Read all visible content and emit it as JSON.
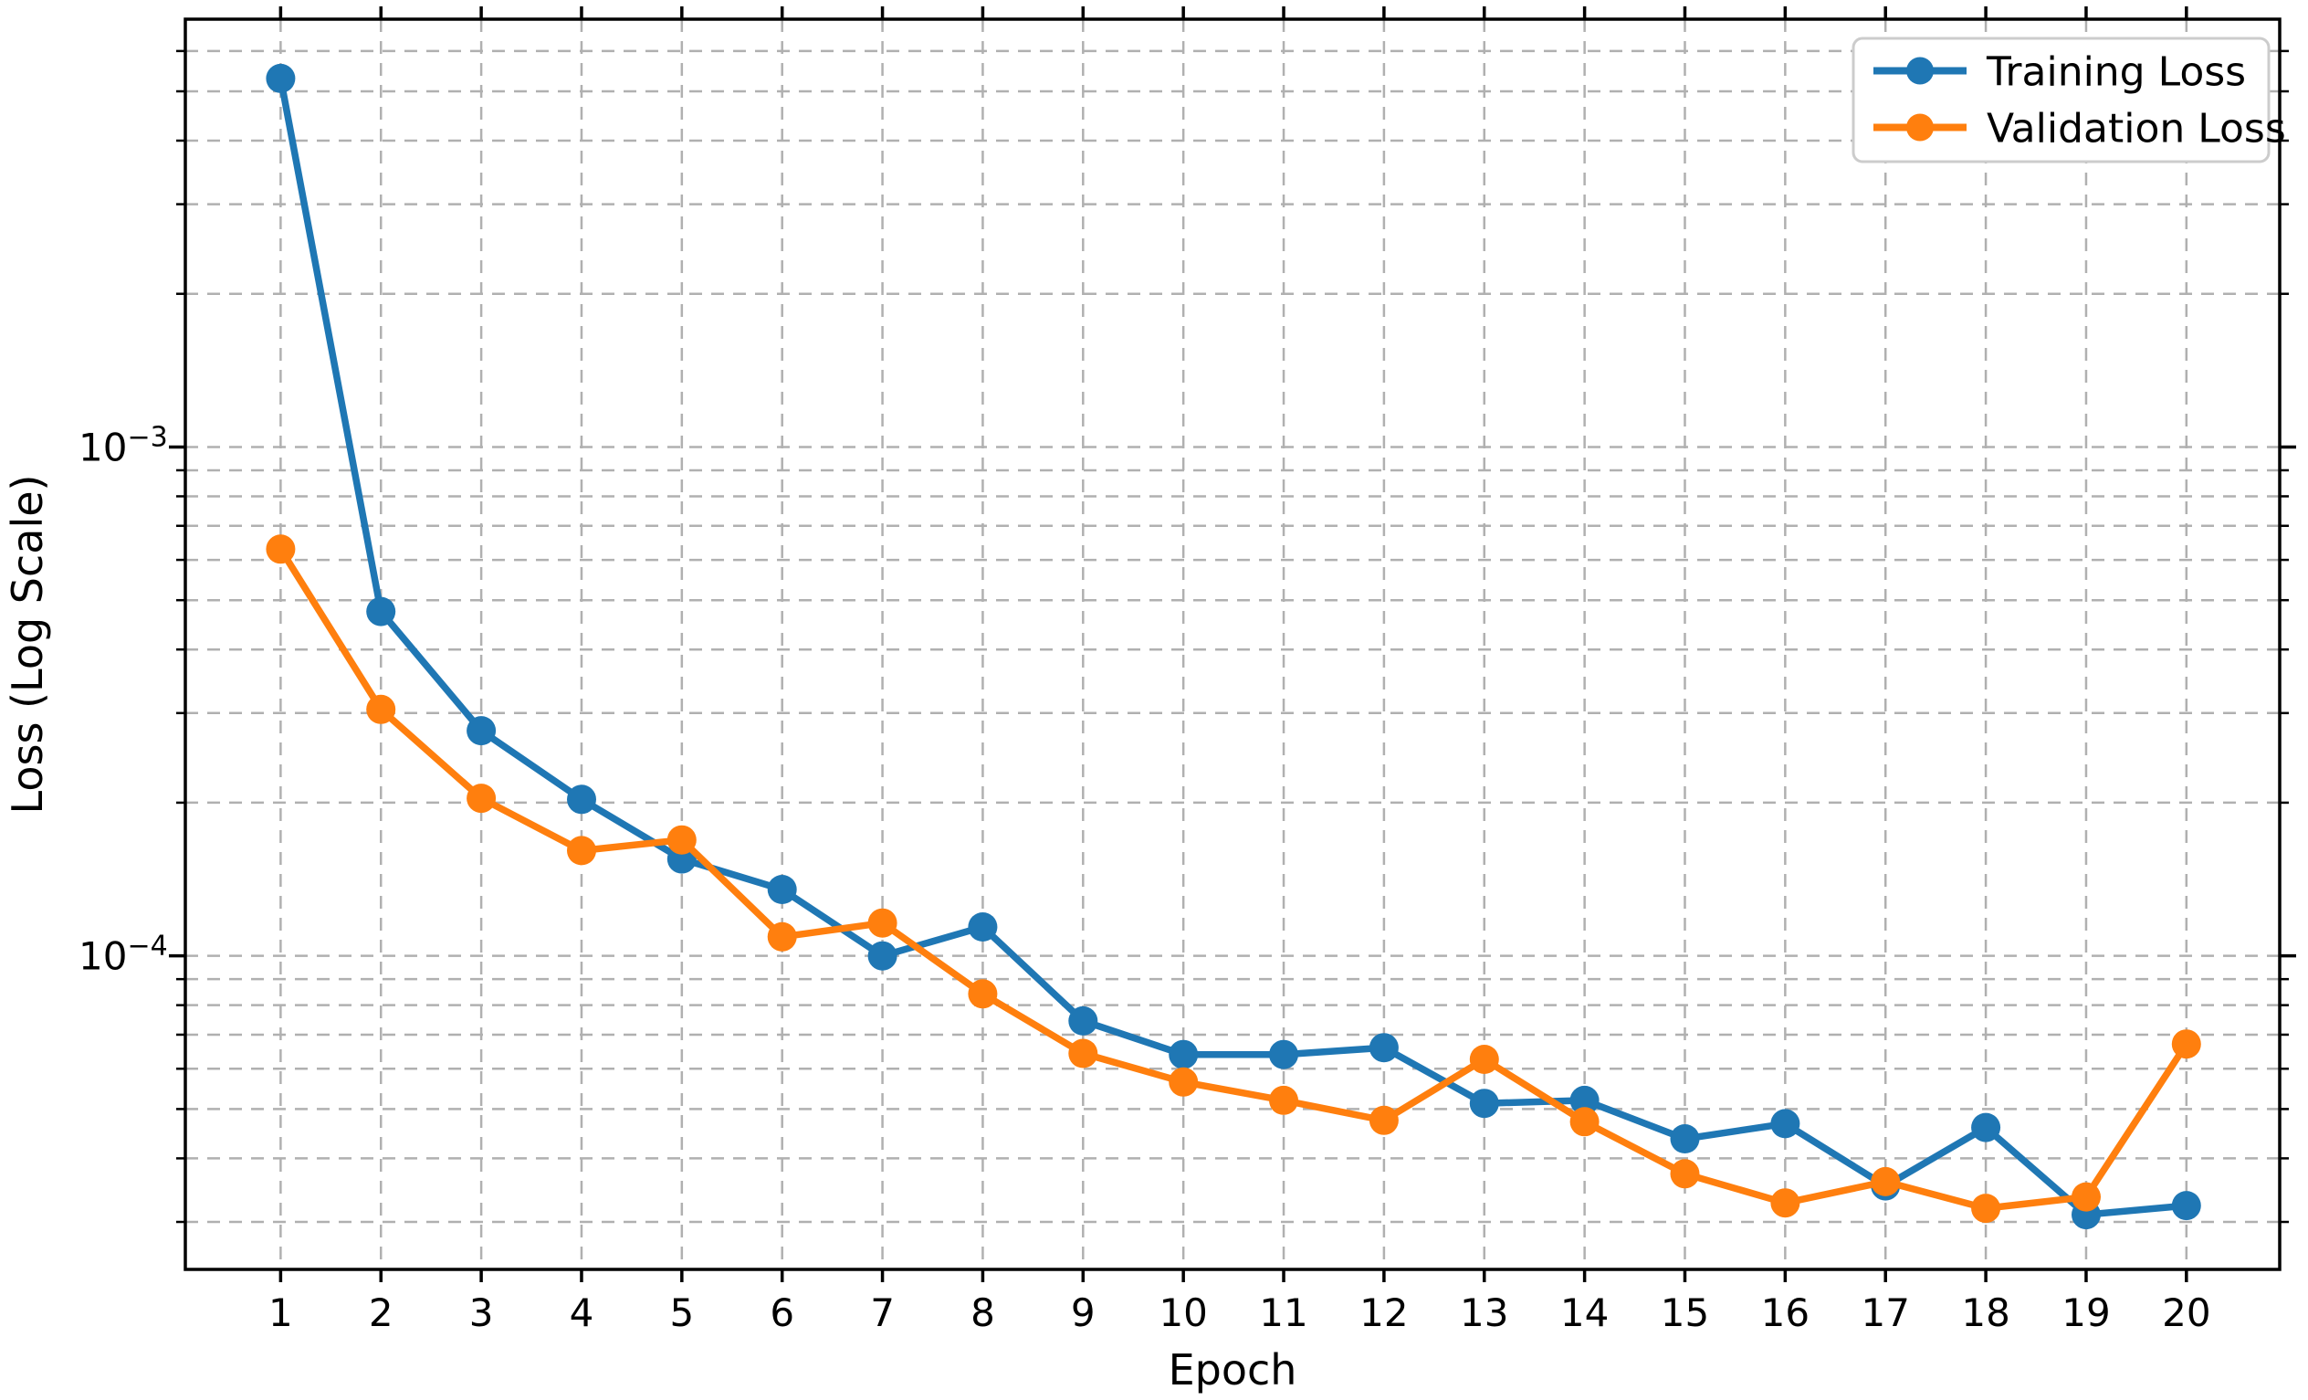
{
  "chart_data": {
    "type": "line",
    "title": "",
    "xlabel": "Epoch",
    "ylabel": "Loss (Log Scale)",
    "y_scale": "log",
    "grid": true,
    "grid_style": "dashed",
    "x": [
      1,
      2,
      3,
      4,
      5,
      6,
      7,
      8,
      9,
      10,
      11,
      12,
      13,
      14,
      15,
      16,
      17,
      18,
      19,
      20
    ],
    "x_tick_labels": [
      "1",
      "2",
      "3",
      "4",
      "5",
      "6",
      "7",
      "8",
      "9",
      "10",
      "11",
      "12",
      "13",
      "14",
      "15",
      "16",
      "17",
      "18",
      "19",
      "20"
    ],
    "y_ticks": [
      {
        "value": 0.001,
        "base": "10",
        "exp": "−3"
      },
      {
        "value": 0.0001,
        "base": "10",
        "exp": "−4"
      }
    ],
    "xlim": [
      0.05,
      20.93
    ],
    "ylim": [
      2.42e-05,
      0.00693
    ],
    "series": [
      {
        "name": "Training Loss",
        "color": "#1f77b4",
        "marker": "circle",
        "values": [
          0.0053,
          0.000475,
          0.000277,
          0.000203,
          0.000155,
          0.000135,
          0.0001,
          0.000114,
          7.45e-05,
          6.4e-05,
          6.4e-05,
          6.6e-05,
          5.13e-05,
          5.2e-05,
          4.37e-05,
          4.68e-05,
          3.53e-05,
          4.6e-05,
          3.1e-05,
          3.23e-05
        ]
      },
      {
        "name": "Validation Loss",
        "color": "#ff7f0e",
        "marker": "circle",
        "values": [
          0.00063,
          0.000305,
          0.000204,
          0.000161,
          0.000169,
          0.000109,
          0.000116,
          8.42e-05,
          6.43e-05,
          5.65e-05,
          5.2e-05,
          4.75e-05,
          6.26e-05,
          4.72e-05,
          3.73e-05,
          3.27e-05,
          3.6e-05,
          3.19e-05,
          3.36e-05,
          6.71e-05
        ]
      }
    ],
    "legend": {
      "position": "upper right"
    }
  },
  "colors": {
    "background": "#ffffff",
    "spine": "#000000",
    "grid": "#b0b0b0",
    "legend_border": "#cccccc",
    "legend_background": "#ffffff"
  }
}
